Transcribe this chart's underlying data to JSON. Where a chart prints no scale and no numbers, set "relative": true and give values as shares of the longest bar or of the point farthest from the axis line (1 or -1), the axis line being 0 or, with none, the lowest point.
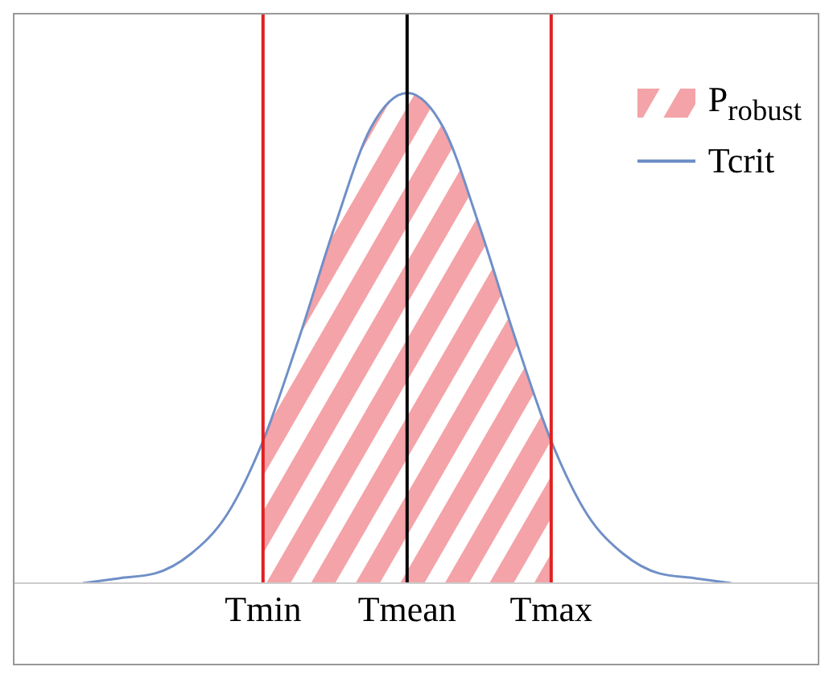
{
  "chart_data": {
    "type": "line",
    "relative": true,
    "categories": [
      null,
      null,
      null,
      null,
      null,
      "Tmin",
      null,
      null,
      null,
      "Tmean",
      null,
      null,
      null,
      "Tmax",
      null,
      null,
      null,
      null,
      null
    ],
    "series": [
      {
        "name": "P$_{robust}$",
        "type": "area",
        "color": "#f4a3a8",
        "values": [
          null,
          null,
          null,
          null,
          null,
          0.29,
          0.5,
          0.73,
          0.93,
          1,
          0.93,
          0.73,
          0.5,
          0.29,
          null,
          null,
          null,
          null,
          null
        ]
      },
      {
        "name": "Tcrit",
        "color": "#6f8fc7",
        "values": [
          0,
          0.01,
          0.02,
          0.06,
          0.14,
          0.29,
          0.5,
          0.73,
          0.93,
          1,
          0.93,
          0.73,
          0.5,
          0.29,
          0.14,
          0.06,
          0.02,
          0.01,
          0
        ]
      }
    ],
    "ref_lines": [
      {
        "axis": "x",
        "value": "Tmin",
        "color": "#e02020"
      },
      {
        "axis": "x",
        "value": "Tmean",
        "color": "#000000"
      },
      {
        "axis": "x",
        "value": "Tmax",
        "color": "#e02020"
      }
    ],
    "legend": "top right",
    "grid": false
  }
}
